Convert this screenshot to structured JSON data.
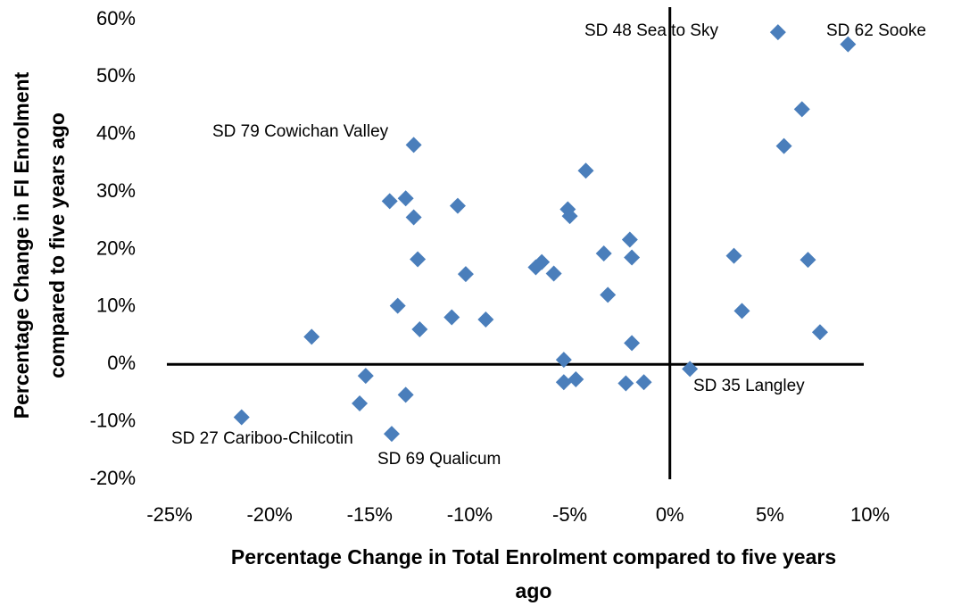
{
  "chart_data": {
    "type": "scatter",
    "xlabel": [
      "Percentage Change in Total Enrolment compared to five years",
      "ago"
    ],
    "ylabel": [
      "Percentage Change in FI Enrolment",
      "compared to five years ago"
    ],
    "color": "#4a7ebb",
    "xlim": [
      -25,
      10
    ],
    "ylim": [
      -20,
      60
    ],
    "xticks": [
      {
        "value": -25,
        "label": "-25%"
      },
      {
        "value": -20,
        "label": "-20%"
      },
      {
        "value": -15,
        "label": "-15%"
      },
      {
        "value": -10,
        "label": "-10%"
      },
      {
        "value": -5,
        "label": "-5%"
      },
      {
        "value": 0,
        "label": "0%"
      },
      {
        "value": 5,
        "label": "5%"
      },
      {
        "value": 10,
        "label": "10%"
      }
    ],
    "yticks": [
      {
        "value": -20,
        "label": "-20%"
      },
      {
        "value": -10,
        "label": "-10%"
      },
      {
        "value": 0,
        "label": "0%"
      },
      {
        "value": 10,
        "label": "10%"
      },
      {
        "value": 20,
        "label": "20%"
      },
      {
        "value": 30,
        "label": "30%"
      },
      {
        "value": 40,
        "label": "40%"
      },
      {
        "value": 50,
        "label": "50%"
      },
      {
        "value": 60,
        "label": "60%"
      }
    ],
    "x": [
      5.4,
      8.9,
      6.6,
      5.7,
      -12.8,
      -4.2,
      -14.0,
      -13.2,
      -12.8,
      -10.6,
      -5.1,
      -5.0,
      -2.0,
      -3.3,
      -1.9,
      3.2,
      6.9,
      -12.6,
      -6.7,
      -6.4,
      -5.8,
      -10.2,
      -3.1,
      -13.6,
      -10.9,
      -9.2,
      3.6,
      -12.5,
      -17.9,
      7.5,
      -1.9,
      -5.3,
      1.0,
      -15.2,
      -5.3,
      -4.7,
      -2.2,
      -1.3,
      -13.2,
      -15.5,
      -21.4,
      -13.9
    ],
    "values": [
      57.8,
      55.7,
      44.4,
      38.0,
      38.2,
      33.7,
      28.4,
      28.9,
      25.6,
      27.6,
      27.0,
      25.8,
      21.7,
      19.3,
      18.6,
      18.9,
      18.2,
      18.3,
      16.9,
      17.8,
      15.8,
      15.7,
      12.1,
      10.2,
      8.2,
      7.8,
      9.3,
      6.1,
      4.8,
      5.6,
      3.7,
      0.8,
      -0.8,
      -2.0,
      -3.1,
      -2.6,
      -3.3,
      -3.1,
      -5.3,
      -6.8,
      -9.2,
      -12.1
    ],
    "annotations": [
      "SD 48 Sea to Sky",
      "SD 62 Sooke",
      "SD 79 Cowichan Valley",
      "SD 35 Langley",
      "SD 27 Cariboo-Chilcotin",
      "SD 69 Qualicum"
    ]
  }
}
